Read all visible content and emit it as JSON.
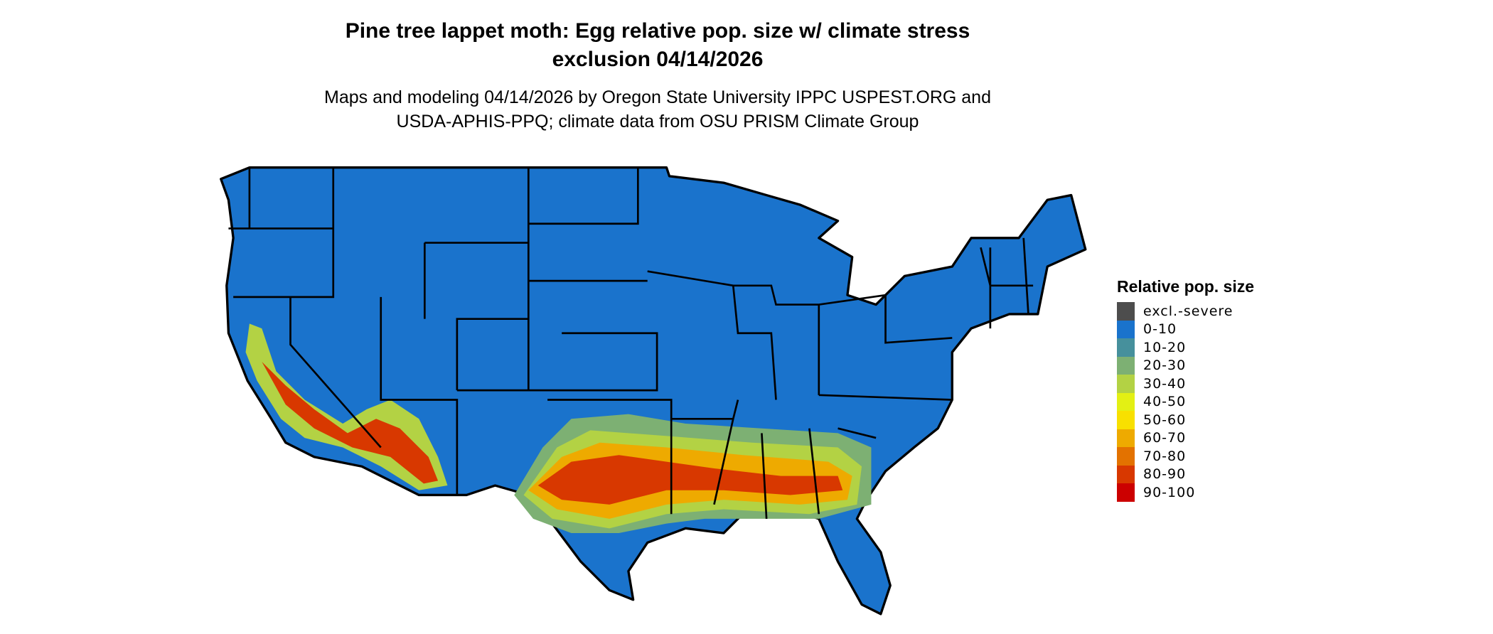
{
  "title": {
    "line1": "Pine tree lappet moth: Egg relative pop. size w/ climate stress",
    "line2": "exclusion 04/14/2026"
  },
  "subtitle": {
    "line1": "Maps and modeling 04/14/2026 by Oregon State University IPPC USPEST.ORG and",
    "line2": "USDA-APHIS-PPQ; climate data from OSU PRISM Climate Group"
  },
  "legend": {
    "title": "Relative pop. size",
    "items": [
      {
        "label": "excl.-severe",
        "color": "#4d4d4d"
      },
      {
        "label": "0-10",
        "color": "#1a73cc"
      },
      {
        "label": "10-20",
        "color": "#46909c"
      },
      {
        "label": "20-30",
        "color": "#7db073"
      },
      {
        "label": "30-40",
        "color": "#b3d244"
      },
      {
        "label": "40-50",
        "color": "#e3f014"
      },
      {
        "label": "50-60",
        "color": "#f8e000"
      },
      {
        "label": "60-70",
        "color": "#eeaa00"
      },
      {
        "label": "70-80",
        "color": "#e37200"
      },
      {
        "label": "80-90",
        "color": "#d83800"
      },
      {
        "label": "90-100",
        "color": "#cc0000"
      }
    ]
  },
  "map": {
    "region": "Contiguous United States",
    "background_class": "0-10",
    "hotspots": [
      "Southern Texas to South Carolina",
      "Southern California and Arizona"
    ]
  }
}
